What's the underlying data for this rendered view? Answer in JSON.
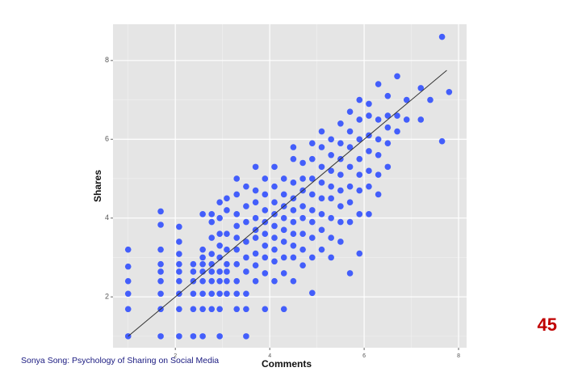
{
  "chart_data": {
    "type": "scatter",
    "xlabel": "Comments",
    "ylabel": "Shares",
    "x": [
      1,
      1,
      1,
      1,
      1,
      1,
      1.69,
      1.69,
      1.69,
      1.69,
      1.69,
      1.69,
      1.69,
      1.69,
      1.69,
      2.08,
      2.08,
      2.08,
      2.08,
      2.08,
      2.08,
      2.08,
      2.08,
      2.08,
      2.38,
      2.38,
      2.38,
      2.38,
      2.38,
      2.38,
      2.58,
      2.58,
      2.58,
      2.58,
      2.58,
      2.58,
      2.58,
      2.58,
      2.58,
      2.77,
      2.77,
      2.77,
      2.77,
      2.77,
      2.77,
      2.77,
      2.77,
      2.77,
      2.94,
      2.94,
      2.94,
      2.94,
      2.94,
      2.94,
      2.94,
      2.94,
      2.94,
      2.94,
      3.09,
      3.09,
      3.09,
      3.09,
      3.09,
      3.09,
      3.09,
      3.09,
      3.3,
      3.3,
      3.3,
      3.3,
      3.3,
      3.3,
      3.3,
      3.3,
      3.3,
      3.3,
      3.5,
      3.5,
      3.5,
      3.5,
      3.5,
      3.5,
      3.5,
      3.5,
      3.5,
      3.7,
      3.7,
      3.7,
      3.7,
      3.7,
      3.7,
      3.7,
      3.7,
      3.7,
      3.9,
      3.9,
      3.9,
      3.9,
      3.9,
      3.9,
      3.9,
      3.9,
      3.9,
      4.1,
      4.1,
      4.1,
      4.1,
      4.1,
      4.1,
      4.1,
      4.1,
      4.1,
      4.3,
      4.3,
      4.3,
      4.3,
      4.3,
      4.3,
      4.3,
      4.3,
      4.3,
      4.5,
      4.5,
      4.5,
      4.5,
      4.5,
      4.5,
      4.5,
      4.5,
      4.5,
      4.5,
      4.7,
      4.7,
      4.7,
      4.7,
      4.7,
      4.7,
      4.7,
      4.7,
      4.9,
      4.9,
      4.9,
      4.9,
      4.9,
      4.9,
      4.9,
      4.9,
      4.9,
      5.1,
      5.1,
      5.1,
      5.1,
      5.1,
      5.1,
      5.1,
      5.1,
      5.3,
      5.3,
      5.3,
      5.3,
      5.3,
      5.3,
      5.3,
      5.3,
      5.5,
      5.5,
      5.5,
      5.5,
      5.5,
      5.5,
      5.5,
      5.5,
      5.7,
      5.7,
      5.7,
      5.7,
      5.7,
      5.7,
      5.7,
      5.7,
      5.9,
      5.9,
      5.9,
      5.9,
      5.9,
      5.9,
      5.9,
      5.9,
      6.1,
      6.1,
      6.1,
      6.1,
      6.1,
      6.1,
      6.1,
      6.3,
      6.3,
      6.3,
      6.3,
      6.3,
      6.3,
      6.5,
      6.5,
      6.5,
      6.5,
      6.5,
      6.7,
      6.7,
      6.7,
      6.9,
      6.9,
      7.2,
      7.2,
      7.4,
      7.65,
      7.65,
      7.8
    ],
    "values": [
      1,
      1.69,
      2.08,
      2.4,
      2.77,
      3.2,
      1,
      1.69,
      2.08,
      2.4,
      2.64,
      2.83,
      3.2,
      3.83,
      4.17,
      1,
      1.69,
      2.08,
      2.4,
      2.64,
      2.83,
      3.09,
      3.4,
      3.78,
      1,
      1.69,
      2.08,
      2.4,
      2.64,
      2.83,
      1,
      1.69,
      2.08,
      2.4,
      2.64,
      2.83,
      3,
      3.2,
      4.1,
      1.69,
      2.08,
      2.4,
      2.64,
      2.83,
      3.09,
      3.5,
      3.9,
      4.1,
      1,
      1.69,
      2.08,
      2.4,
      2.64,
      3,
      3.3,
      3.6,
      4,
      4.4,
      2.08,
      2.4,
      2.64,
      2.83,
      3.2,
      3.6,
      4.2,
      4.5,
      1.69,
      2.08,
      2.4,
      2.83,
      3.2,
      3.5,
      3.8,
      4.1,
      4.6,
      5,
      1,
      1.69,
      2.08,
      2.64,
      3,
      3.4,
      3.9,
      4.3,
      4.8,
      2.4,
      2.8,
      3.1,
      3.5,
      3.7,
      4,
      4.4,
      4.7,
      5.3,
      1.69,
      2.6,
      3,
      3.3,
      3.6,
      3.9,
      4.2,
      4.6,
      5,
      2.4,
      2.9,
      3.2,
      3.5,
      3.8,
      4.1,
      4.4,
      4.8,
      5.3,
      1.69,
      2.6,
      3,
      3.4,
      3.7,
      4,
      4.3,
      4.6,
      5,
      2.4,
      3,
      3.3,
      3.6,
      3.9,
      4.2,
      4.5,
      4.9,
      5.5,
      5.8,
      2.8,
      3.2,
      3.6,
      4,
      4.3,
      4.7,
      5,
      5.4,
      2.1,
      3,
      3.5,
      3.9,
      4.2,
      4.6,
      5,
      5.5,
      5.9,
      3.2,
      3.7,
      4.1,
      4.5,
      4.9,
      5.3,
      5.8,
      6.2,
      3,
      3.5,
      4,
      4.5,
      4.8,
      5.2,
      5.6,
      6,
      3.4,
      3.9,
      4.3,
      4.7,
      5.1,
      5.5,
      5.9,
      6.4,
      2.6,
      3.9,
      4.4,
      4.8,
      5.3,
      5.8,
      6.2,
      6.7,
      3.1,
      4.1,
      4.7,
      5.1,
      5.5,
      6,
      6.5,
      7,
      4.1,
      4.8,
      5.2,
      5.7,
      6.1,
      6.6,
      6.9,
      4.6,
      5.1,
      5.6,
      6,
      6.5,
      7.4,
      5.3,
      5.9,
      6.3,
      6.6,
      7.1,
      6.2,
      6.6,
      7.6,
      6.5,
      7,
      6.5,
      7.3,
      7,
      5.95,
      8.6,
      7.2
    ],
    "color": "#1f3fff",
    "fit_line": {
      "x": [
        1,
        7.75
      ],
      "y": [
        1,
        7.75
      ],
      "color": "#333333"
    },
    "xlim": [
      0.68,
      8.17
    ],
    "ylim": [
      0.71,
      8.92
    ],
    "xticks": [
      2,
      4,
      6,
      8
    ],
    "yticks": [
      2,
      4,
      6,
      8
    ],
    "xminor": [
      1,
      3,
      5,
      7
    ],
    "yminor": [
      1,
      3,
      5,
      7
    ],
    "grid": true
  },
  "slide": {
    "number": "45",
    "footer": "Sonya Song: Psychology of Sharing on Social Media"
  }
}
